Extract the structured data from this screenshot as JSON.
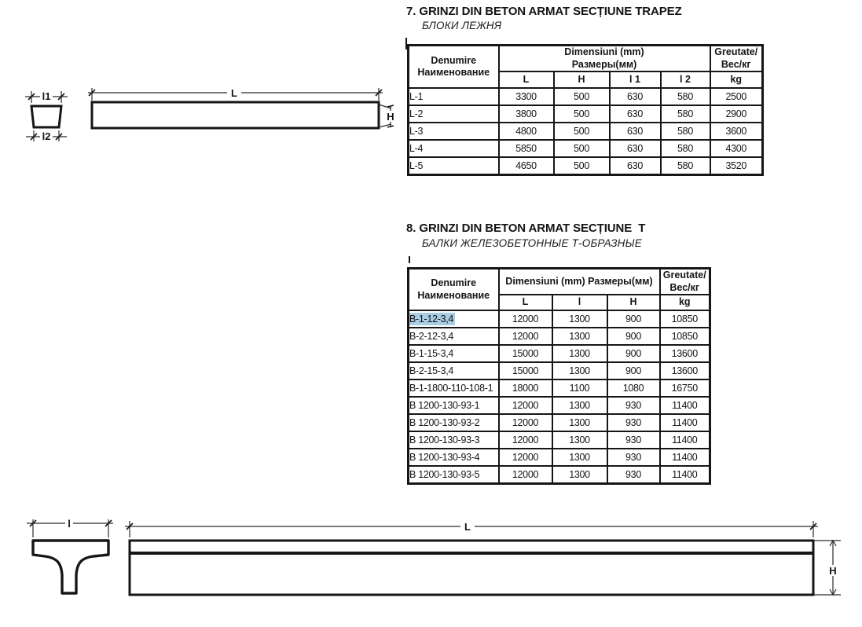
{
  "colors": {
    "paper": "#ffffff",
    "ink": "#141414",
    "highlight": "#a9cde3"
  },
  "section7": {
    "title": "7. GRINZI DIN BETON ARMAT SECȚIUNE TRAPEZ",
    "subtitle": "БЛОКИ ЛЕЖНЯ",
    "table": {
      "name_header": [
        "Denumire",
        "Наименование"
      ],
      "dims_header": [
        "Dimensiuni (mm)",
        "Размеры(мм)"
      ],
      "dim_cols": [
        "L",
        "H",
        "l 1",
        "l 2"
      ],
      "weight_header": [
        "Greutate/",
        "Вес/кг"
      ],
      "weight_unit": "kg",
      "rows": [
        {
          "name": "L-1",
          "values": [
            "3300",
            "500",
            "630",
            "580",
            "2500"
          ]
        },
        {
          "name": "L-2",
          "values": [
            "3800",
            "500",
            "630",
            "580",
            "2900"
          ]
        },
        {
          "name": "L-3",
          "values": [
            "4800",
            "500",
            "630",
            "580",
            "3600"
          ]
        },
        {
          "name": "L-4",
          "values": [
            "5850",
            "500",
            "630",
            "580",
            "4300"
          ]
        },
        {
          "name": "L-5",
          "values": [
            "4650",
            "500",
            "630",
            "580",
            "3520"
          ]
        }
      ]
    },
    "drawing": {
      "dim_l1": "l1",
      "dim_l2": "l2",
      "dim_length": "L",
      "dim_height": "H"
    }
  },
  "section8": {
    "title": "8. GRINZI DIN BETON ARMAT SECȚIUNE  T",
    "subtitle": "БАЛКИ ЖЕЛЕЗОБЕТОННЫЕ Т-ОБРАЗНЫЕ",
    "table": {
      "name_header": [
        "Denumire",
        "Наименование"
      ],
      "dims_header": [
        "Dimensiuni (mm)  Размеры(мм)"
      ],
      "dim_cols": [
        "L",
        "l",
        "H"
      ],
      "weight_header": [
        "Greutate/",
        "Вес/кг"
      ],
      "weight_unit": "kg",
      "rows": [
        {
          "name": "B-1-12-3,4",
          "highlighted": true,
          "values": [
            "12000",
            "1300",
            "900",
            "10850"
          ]
        },
        {
          "name": "B-2-12-3,4",
          "values": [
            "12000",
            "1300",
            "900",
            "10850"
          ]
        },
        {
          "name": "B-1-15-3,4",
          "values": [
            "15000",
            "1300",
            "900",
            "13600"
          ]
        },
        {
          "name": "B-2-15-3,4",
          "values": [
            "15000",
            "1300",
            "900",
            "13600"
          ]
        },
        {
          "name": "B-1-1800-110-108-1",
          "values": [
            "18000",
            "1100",
            "1080",
            "16750"
          ]
        },
        {
          "name": "B 1200-130-93-1",
          "values": [
            "12000",
            "1300",
            "930",
            "11400"
          ]
        },
        {
          "name": "B 1200-130-93-2",
          "values": [
            "12000",
            "1300",
            "930",
            "11400"
          ]
        },
        {
          "name": "B 1200-130-93-3",
          "values": [
            "12000",
            "1300",
            "930",
            "11400"
          ]
        },
        {
          "name": "B 1200-130-93-4",
          "values": [
            "12000",
            "1300",
            "930",
            "11400"
          ]
        },
        {
          "name": "B 1200-130-93-5",
          "values": [
            "12000",
            "1300",
            "930",
            "11400"
          ]
        }
      ]
    },
    "drawing": {
      "dim_flange": "l",
      "dim_length": "L",
      "dim_height": "H"
    }
  }
}
